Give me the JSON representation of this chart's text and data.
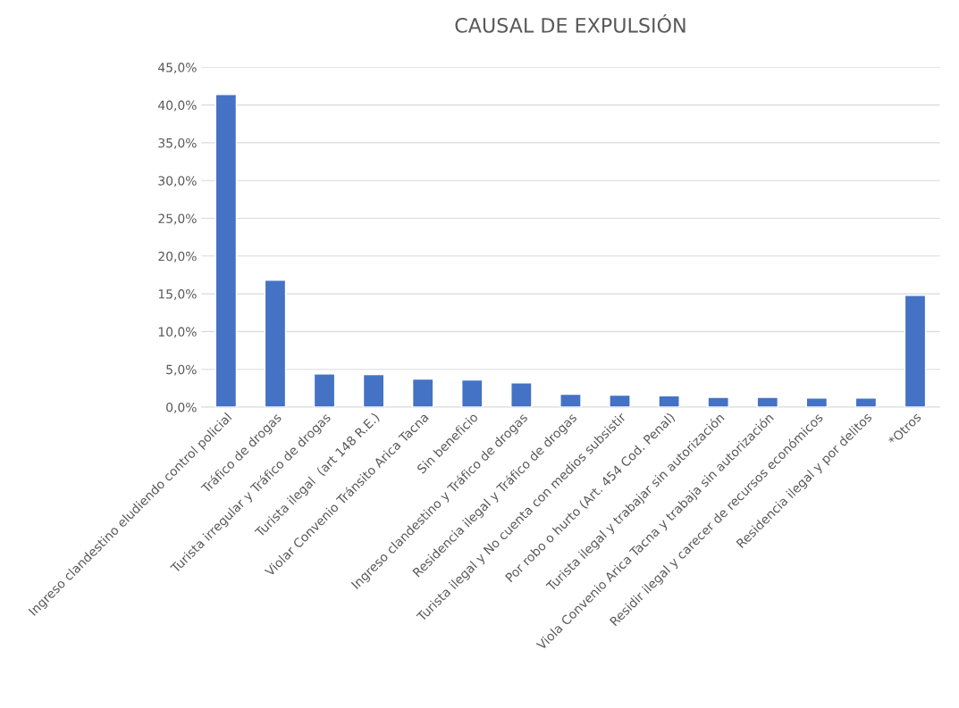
{
  "chart_data": {
    "type": "bar",
    "title": "CAUSAL DE EXPULSIÓN",
    "categories": [
      "Ingreso clandestino eludiendo control policial",
      "Tráfico de drogas",
      "Turista irregular y Tráfico de drogas",
      "Turista ilegal  (art 148 R.E.)",
      "Violar Convenio Tránsito Arica Tacna",
      "Sin beneficio",
      "Ingreso clandestino y Tráfico de drogas",
      "Residencia ilegal y Tráfico de drogas",
      "Turista ilegal y No cuenta con medios subsistir",
      "Por robo o hurto (Art. 454 Cod. Penal)",
      "Turista ilegal y trabajar sin autorización",
      "Viola Convenio Arica Tacna y trabaja sin autorización",
      "Residir ilegal y carecer de recursos económicos",
      "Residencia ilegal y por delitos",
      "*Otros"
    ],
    "values": [
      41.4,
      16.8,
      4.4,
      4.3,
      3.7,
      3.6,
      3.2,
      1.7,
      1.6,
      1.5,
      1.3,
      1.3,
      1.2,
      1.2,
      14.8
    ],
    "color": "#4472c4",
    "ylim": [
      0,
      45
    ],
    "yticks": [
      {
        "value": 0,
        "label": "0,0%"
      },
      {
        "value": 5,
        "label": "5,0%"
      },
      {
        "value": 10,
        "label": "10,0%"
      },
      {
        "value": 15,
        "label": "15,0%"
      },
      {
        "value": 20,
        "label": "20,0%"
      },
      {
        "value": 25,
        "label": "25,0%"
      },
      {
        "value": 30,
        "label": "30,0%"
      },
      {
        "value": 35,
        "label": "35,0%"
      },
      {
        "value": 40,
        "label": "40,0%"
      },
      {
        "value": 45,
        "label": "45,0%"
      }
    ],
    "grid": "y"
  }
}
